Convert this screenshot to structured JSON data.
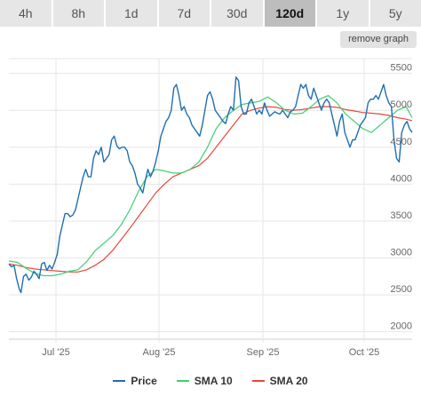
{
  "tabs": [
    "4h",
    "8h",
    "1d",
    "7d",
    "30d",
    "120d",
    "1y",
    "5y"
  ],
  "active_tab": "120d",
  "remove_label": "remove graph",
  "colors": {
    "price": "#1f6fb0",
    "sma10": "#3fcf73",
    "sma20": "#e8473b"
  },
  "chart_data": {
    "type": "line",
    "x_ticks": [
      "Jul '25",
      "Aug '25",
      "Sep '25",
      "Oct '25"
    ],
    "y_ticks": [
      2000,
      2500,
      3000,
      3500,
      4000,
      4500,
      5000,
      5500
    ],
    "ylim": [
      1900,
      5700
    ],
    "legend_position": "bottom",
    "grid": true,
    "series": [
      {
        "name": "Price",
        "color": "#1f6fb0",
        "points": [
          [
            0,
            2920
          ],
          [
            3,
            2880
          ],
          [
            6,
            2900
          ],
          [
            9,
            2720
          ],
          [
            12,
            2580
          ],
          [
            14,
            2530
          ],
          [
            17,
            2750
          ],
          [
            20,
            2780
          ],
          [
            23,
            2700
          ],
          [
            26,
            2740
          ],
          [
            29,
            2820
          ],
          [
            32,
            2780
          ],
          [
            35,
            2720
          ],
          [
            38,
            2920
          ],
          [
            41,
            2940
          ],
          [
            44,
            2830
          ],
          [
            47,
            2900
          ],
          [
            50,
            2850
          ],
          [
            53,
            2940
          ],
          [
            56,
            3050
          ],
          [
            59,
            3300
          ],
          [
            62,
            3450
          ],
          [
            65,
            3600
          ],
          [
            68,
            3600
          ],
          [
            71,
            3560
          ],
          [
            74,
            3580
          ],
          [
            77,
            3650
          ],
          [
            80,
            3800
          ],
          [
            83,
            3950
          ],
          [
            86,
            4100
          ],
          [
            89,
            4200
          ],
          [
            92,
            4100
          ],
          [
            95,
            4100
          ],
          [
            98,
            4350
          ],
          [
            101,
            4450
          ],
          [
            104,
            4400
          ],
          [
            107,
            4500
          ],
          [
            110,
            4300
          ],
          [
            113,
            4350
          ],
          [
            116,
            4400
          ],
          [
            119,
            4600
          ],
          [
            122,
            4650
          ],
          [
            125,
            4520
          ],
          [
            128,
            4480
          ],
          [
            131,
            4500
          ],
          [
            134,
            4500
          ],
          [
            137,
            4450
          ],
          [
            140,
            4300
          ],
          [
            143,
            4250
          ],
          [
            146,
            4150
          ],
          [
            149,
            4000
          ],
          [
            152,
            3950
          ],
          [
            155,
            3880
          ],
          [
            158,
            4050
          ],
          [
            161,
            4200
          ],
          [
            164,
            4100
          ],
          [
            167,
            4180
          ],
          [
            170,
            4300
          ],
          [
            173,
            4450
          ],
          [
            176,
            4650
          ],
          [
            179,
            4750
          ],
          [
            182,
            4850
          ],
          [
            185,
            4900
          ],
          [
            188,
            5000
          ],
          [
            191,
            5300
          ],
          [
            194,
            5350
          ],
          [
            197,
            5200
          ],
          [
            200,
            5000
          ],
          [
            203,
            5050
          ],
          [
            206,
            4950
          ],
          [
            209,
            4900
          ],
          [
            212,
            4800
          ],
          [
            215,
            4750
          ],
          [
            218,
            4700
          ],
          [
            221,
            4650
          ],
          [
            224,
            4800
          ],
          [
            227,
            5000
          ],
          [
            230,
            5200
          ],
          [
            233,
            5250
          ],
          [
            236,
            5150
          ],
          [
            239,
            5000
          ],
          [
            242,
            4950
          ],
          [
            245,
            4900
          ],
          [
            248,
            4850
          ],
          [
            251,
            4820
          ],
          [
            254,
            4950
          ],
          [
            257,
            5050
          ],
          [
            260,
            5000
          ],
          [
            263,
            5450
          ],
          [
            266,
            5400
          ],
          [
            269,
            5050
          ],
          [
            272,
            4950
          ],
          [
            275,
            4950
          ],
          [
            278,
            5100
          ],
          [
            281,
            5150
          ],
          [
            284,
            5050
          ],
          [
            287,
            4950
          ],
          [
            290,
            5000
          ],
          [
            293,
            4950
          ],
          [
            296,
            5100
          ],
          [
            299,
            5000
          ],
          [
            302,
            4920
          ],
          [
            305,
            4950
          ],
          [
            308,
            4980
          ],
          [
            311,
            4960
          ],
          [
            314,
            4950
          ],
          [
            317,
            5000
          ],
          [
            320,
            4950
          ],
          [
            323,
            4900
          ],
          [
            326,
            4980
          ],
          [
            329,
            5000
          ],
          [
            332,
            5050
          ],
          [
            335,
            5200
          ],
          [
            338,
            5350
          ],
          [
            341,
            5300
          ],
          [
            344,
            5350
          ],
          [
            347,
            5200
          ],
          [
            350,
            5150
          ],
          [
            353,
            5300
          ],
          [
            356,
            5200
          ],
          [
            359,
            5100
          ],
          [
            362,
            5000
          ],
          [
            365,
            5100
          ],
          [
            368,
            5150
          ],
          [
            371,
            5100
          ],
          [
            374,
            4950
          ],
          [
            377,
            4800
          ],
          [
            380,
            4650
          ],
          [
            383,
            4850
          ],
          [
            386,
            4950
          ],
          [
            389,
            4700
          ],
          [
            392,
            4600
          ],
          [
            395,
            4500
          ],
          [
            398,
            4600
          ],
          [
            401,
            4600
          ],
          [
            404,
            4700
          ],
          [
            407,
            4800
          ],
          [
            410,
            4850
          ],
          [
            413,
            4900
          ],
          [
            416,
            5100
          ],
          [
            419,
            5150
          ],
          [
            422,
            5150
          ],
          [
            425,
            5200
          ],
          [
            428,
            5150
          ],
          [
            431,
            5250
          ],
          [
            434,
            5350
          ],
          [
            437,
            5200
          ],
          [
            440,
            5100
          ],
          [
            443,
            5050
          ],
          [
            446,
            4600
          ],
          [
            449,
            4350
          ],
          [
            452,
            4300
          ],
          [
            455,
            4700
          ],
          [
            458,
            4800
          ],
          [
            461,
            4850
          ],
          [
            464,
            4750
          ],
          [
            467,
            4700
          ]
        ]
      },
      {
        "name": "SMA 10",
        "color": "#3fcf73",
        "points": [
          [
            0,
            2960
          ],
          [
            10,
            2940
          ],
          [
            20,
            2860
          ],
          [
            30,
            2790
          ],
          [
            40,
            2760
          ],
          [
            50,
            2760
          ],
          [
            60,
            2780
          ],
          [
            70,
            2820
          ],
          [
            80,
            2840
          ],
          [
            90,
            2950
          ],
          [
            100,
            3100
          ],
          [
            110,
            3200
          ],
          [
            120,
            3300
          ],
          [
            130,
            3450
          ],
          [
            140,
            3650
          ],
          [
            150,
            3900
          ],
          [
            160,
            4100
          ],
          [
            170,
            4200
          ],
          [
            180,
            4180
          ],
          [
            190,
            4150
          ],
          [
            200,
            4150
          ],
          [
            210,
            4200
          ],
          [
            220,
            4300
          ],
          [
            230,
            4500
          ],
          [
            240,
            4750
          ],
          [
            250,
            4900
          ],
          [
            260,
            5000
          ],
          [
            270,
            5080
          ],
          [
            280,
            5100
          ],
          [
            290,
            5120
          ],
          [
            300,
            5180
          ],
          [
            310,
            5100
          ],
          [
            320,
            5000
          ],
          [
            330,
            4950
          ],
          [
            340,
            4960
          ],
          [
            350,
            5050
          ],
          [
            360,
            5150
          ],
          [
            370,
            5200
          ],
          [
            380,
            5100
          ],
          [
            390,
            4950
          ],
          [
            400,
            4850
          ],
          [
            410,
            4750
          ],
          [
            420,
            4700
          ],
          [
            430,
            4800
          ],
          [
            440,
            4900
          ],
          [
            450,
            5000
          ],
          [
            460,
            5050
          ],
          [
            467,
            4900
          ]
        ]
      },
      {
        "name": "SMA 20",
        "color": "#e8473b",
        "points": [
          [
            0,
            2920
          ],
          [
            10,
            2900
          ],
          [
            20,
            2870
          ],
          [
            30,
            2850
          ],
          [
            40,
            2840
          ],
          [
            50,
            2830
          ],
          [
            60,
            2820
          ],
          [
            70,
            2810
          ],
          [
            80,
            2810
          ],
          [
            90,
            2840
          ],
          [
            100,
            2900
          ],
          [
            110,
            2980
          ],
          [
            120,
            3100
          ],
          [
            130,
            3250
          ],
          [
            140,
            3400
          ],
          [
            150,
            3560
          ],
          [
            160,
            3720
          ],
          [
            170,
            3880
          ],
          [
            180,
            4000
          ],
          [
            190,
            4100
          ],
          [
            200,
            4150
          ],
          [
            210,
            4200
          ],
          [
            220,
            4250
          ],
          [
            230,
            4350
          ],
          [
            240,
            4500
          ],
          [
            250,
            4650
          ],
          [
            260,
            4800
          ],
          [
            270,
            4950
          ],
          [
            280,
            5000
          ],
          [
            290,
            5030
          ],
          [
            300,
            5050
          ],
          [
            310,
            5040
          ],
          [
            320,
            5010
          ],
          [
            330,
            5000
          ],
          [
            340,
            5010
          ],
          [
            350,
            5030
          ],
          [
            360,
            5050
          ],
          [
            370,
            5050
          ],
          [
            380,
            5040
          ],
          [
            390,
            5010
          ],
          [
            400,
            4990
          ],
          [
            410,
            4970
          ],
          [
            420,
            4960
          ],
          [
            430,
            4950
          ],
          [
            440,
            4930
          ],
          [
            450,
            4900
          ],
          [
            460,
            4880
          ],
          [
            467,
            4860
          ]
        ]
      }
    ]
  }
}
